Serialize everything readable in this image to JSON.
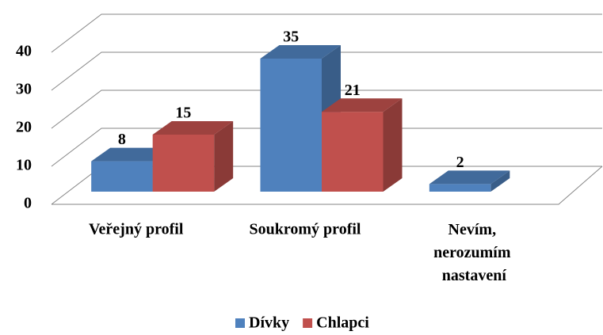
{
  "chart_data": {
    "type": "bar3d",
    "categories": [
      "Veřejný profil",
      "Soukromý profil",
      "Nevím, nerozumím nastavení"
    ],
    "series": [
      {
        "name": "Dívky",
        "color": "#4f81bd",
        "values": [
          8,
          35,
          2
        ]
      },
      {
        "name": "Chlapci",
        "color": "#c0504d",
        "values": [
          15,
          21,
          null
        ]
      }
    ],
    "ylim": [
      0,
      40
    ],
    "yticks": [
      0,
      10,
      20,
      30,
      40
    ],
    "grid": true,
    "legend": "bottom"
  }
}
